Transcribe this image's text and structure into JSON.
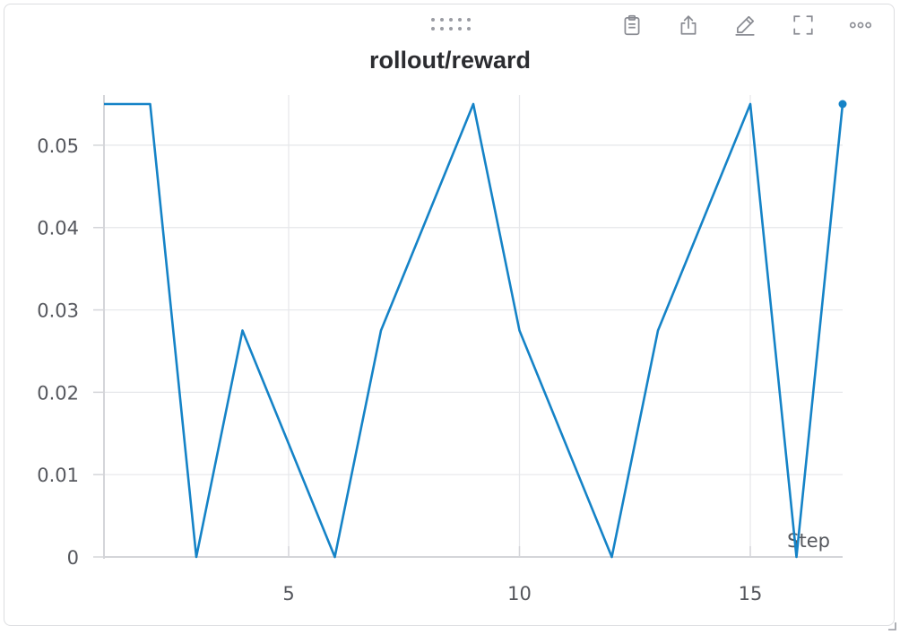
{
  "panel": {
    "title": "rollout/reward",
    "toolbar": {
      "icons": [
        "clipboard-icon",
        "share-icon",
        "edit-icon",
        "fullscreen-icon",
        "more-icon"
      ]
    }
  },
  "colors": {
    "series": "#1583c7",
    "grid": "#e6e7ea",
    "axis": "#d4d5d9",
    "text": "#55575d",
    "title": "#2b2c30"
  },
  "chart_data": {
    "type": "line",
    "title": "rollout/reward",
    "xlabel": "Step",
    "ylabel": "",
    "xlim": [
      1,
      17
    ],
    "ylim": [
      0,
      0.055
    ],
    "x_ticks": [
      5,
      10,
      15
    ],
    "y_ticks": [
      0,
      0.01,
      0.02,
      0.03,
      0.04,
      0.05
    ],
    "y_tick_labels": [
      "0",
      "0.01",
      "0.02",
      "0.03",
      "0.04",
      "0.05"
    ],
    "grid": true,
    "series": [
      {
        "x": [
          1,
          2,
          3,
          4,
          5,
          6,
          7,
          8,
          9,
          10,
          11,
          12,
          13,
          14,
          15,
          16,
          17
        ],
        "y": [
          0.055,
          0.055,
          0,
          0.0275,
          0.01375,
          0,
          0.0275,
          0.04125,
          0.055,
          0.0275,
          0.01375,
          0,
          0.0275,
          0.04125,
          0.055,
          0,
          0.055
        ]
      }
    ]
  }
}
